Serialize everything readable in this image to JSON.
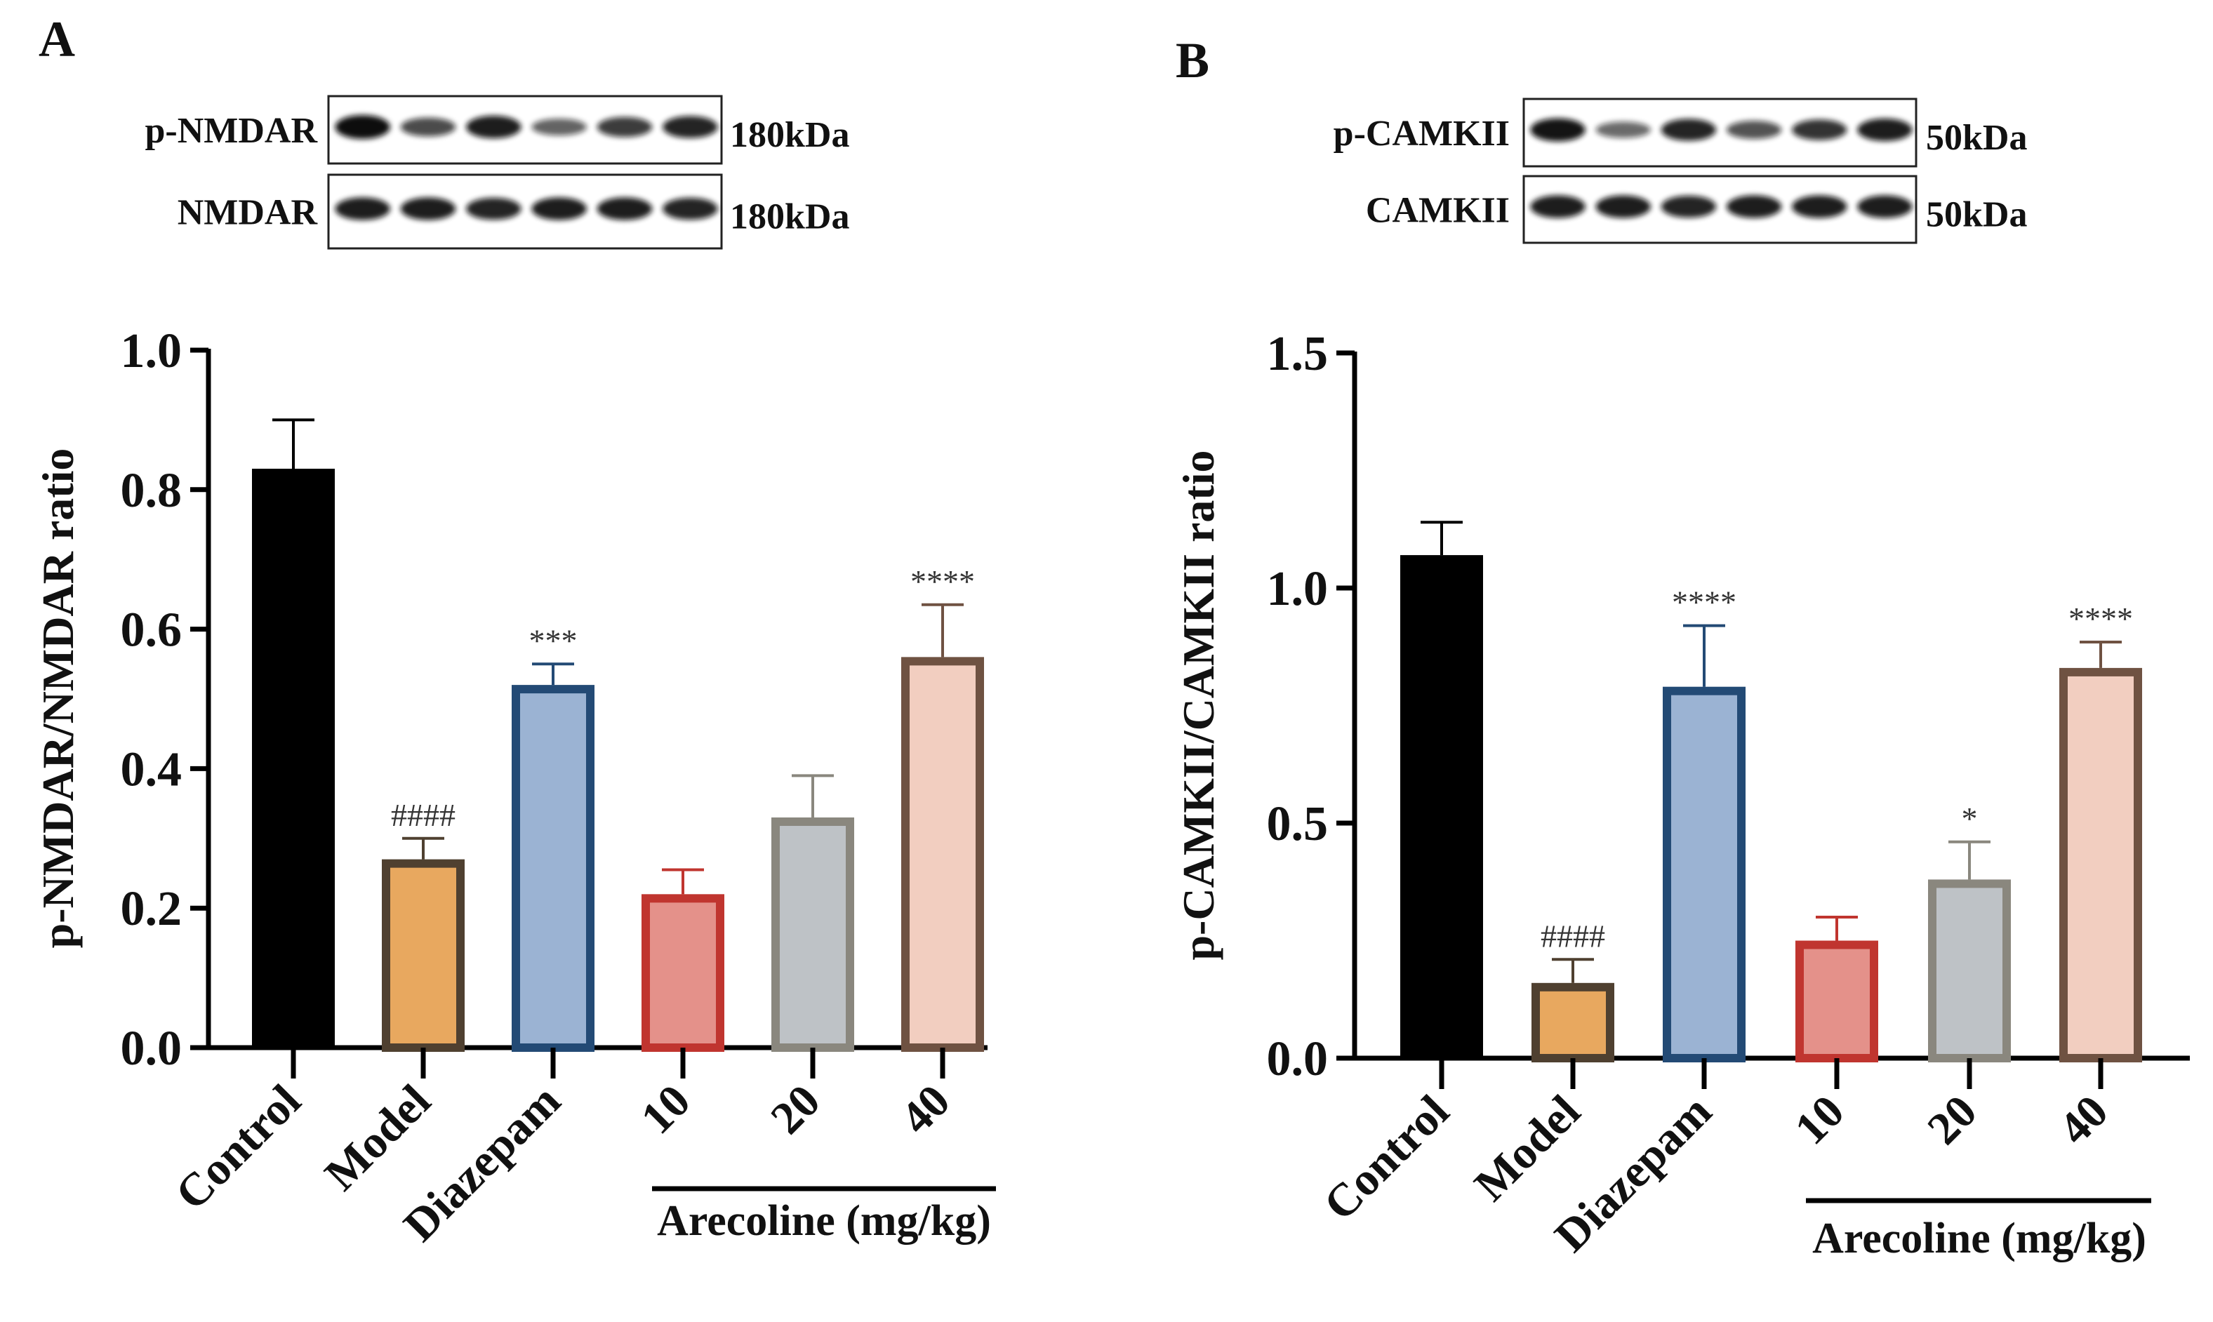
{
  "chart_data": [
    {
      "panel": "A",
      "type": "bar",
      "blots": [
        {
          "label": "p-NMDAR",
          "size": "180kDa",
          "band_intensity": [
            1.0,
            0.6,
            0.9,
            0.45,
            0.7,
            0.85
          ]
        },
        {
          "label": "NMDAR",
          "size": "180kDa",
          "band_intensity": [
            0.9,
            0.9,
            0.85,
            0.9,
            0.9,
            0.85
          ]
        }
      ],
      "categories": [
        "Control",
        "Model",
        "Diazepam",
        "10",
        "20",
        "40"
      ],
      "values": [
        0.83,
        0.27,
        0.52,
        0.22,
        0.33,
        0.56
      ],
      "errors": [
        0.07,
        0.03,
        0.03,
        0.035,
        0.06,
        0.075
      ],
      "annotations": [
        "",
        "####",
        "***",
        "",
        "",
        "****"
      ],
      "fill_colors": [
        "#000000",
        "#E8A85F",
        "#9BB3D3",
        "#E4918A",
        "#BEC2C6",
        "#F2CEC0"
      ],
      "stroke_colors": [
        "#000000",
        "#4F4030",
        "#234A75",
        "#C0352F",
        "#8A877E",
        "#6F5242"
      ],
      "ylabel": "p-NMDAR/NMDAR ratio",
      "ylim": [
        0,
        1.0
      ],
      "yticks": [
        "0.0",
        "0.2",
        "0.4",
        "0.6",
        "0.8",
        "1.0"
      ],
      "group_label": "Arecoline (mg/kg)"
    },
    {
      "panel": "B",
      "type": "bar",
      "blots": [
        {
          "label": "p-CAMKII",
          "size": "50kDa",
          "band_intensity": [
            0.95,
            0.4,
            0.85,
            0.55,
            0.75,
            0.9
          ]
        },
        {
          "label": "CAMKII",
          "size": "50kDa",
          "band_intensity": [
            0.9,
            0.9,
            0.85,
            0.9,
            0.9,
            0.9
          ]
        }
      ],
      "categories": [
        "Control",
        "Model",
        "Diazepam",
        "10",
        "20",
        "40"
      ],
      "values": [
        1.07,
        0.16,
        0.79,
        0.25,
        0.38,
        0.83
      ],
      "errors": [
        0.07,
        0.05,
        0.13,
        0.05,
        0.08,
        0.055
      ],
      "annotations": [
        "",
        "####",
        "****",
        "",
        "*",
        "****"
      ],
      "fill_colors": [
        "#000000",
        "#E8A85F",
        "#9BB3D3",
        "#E4918A",
        "#BEC2C6",
        "#F2CEC0"
      ],
      "stroke_colors": [
        "#000000",
        "#4F4030",
        "#234A75",
        "#C0352F",
        "#8A877E",
        "#6F5242"
      ],
      "ylabel": "p-CAMKII/CAMKII ratio",
      "ylim": [
        0,
        1.5
      ],
      "yticks": [
        "0.0",
        "0.5",
        "1.0",
        "1.5"
      ],
      "group_label": "Arecoline (mg/kg)"
    }
  ]
}
